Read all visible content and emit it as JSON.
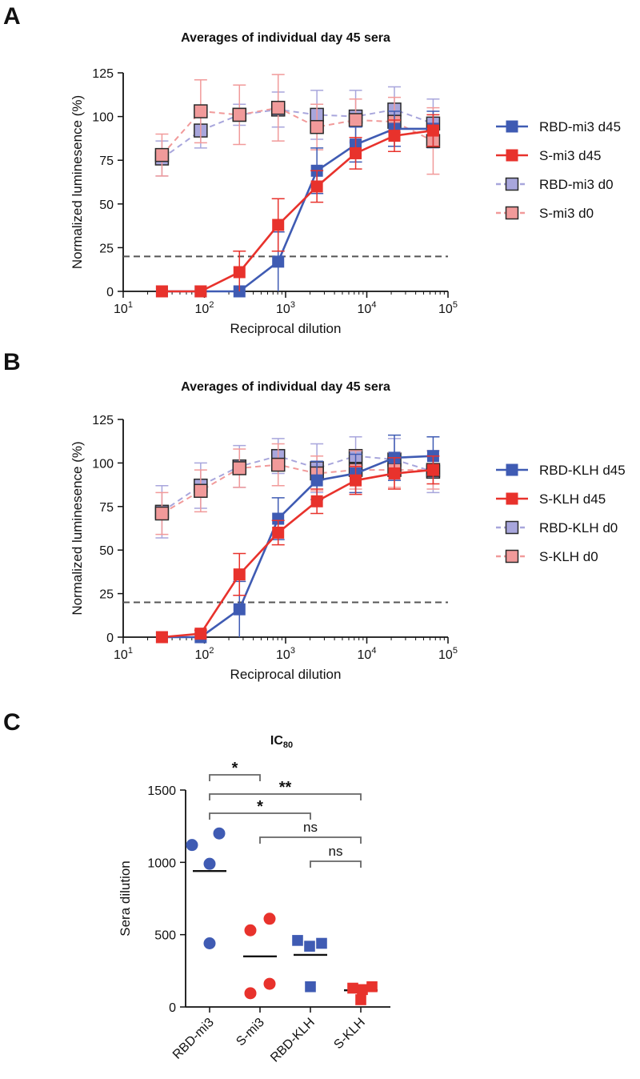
{
  "figure": {
    "panels": [
      {
        "letter": "A",
        "title": "Averages of individual day 45 sera"
      },
      {
        "letter": "B",
        "title": "Averages of individual day 45 sera"
      },
      {
        "letter": "C",
        "title_main": "IC",
        "title_sub": "80"
      }
    ]
  },
  "chart_data": [
    {
      "type": "line",
      "panel": "A",
      "title": "Averages of individual day 45 sera",
      "xlabel": "Reciprocal dilution",
      "ylabel": "Normalized luminesence (%)",
      "xscale": "log",
      "xlim": [
        10,
        100000
      ],
      "ylim": [
        0,
        125
      ],
      "yticks": [
        0,
        25,
        50,
        75,
        100,
        125
      ],
      "xticks": [
        {
          "base": "10",
          "exp": "1"
        },
        {
          "base": "10",
          "exp": "2"
        },
        {
          "base": "10",
          "exp": "3"
        },
        {
          "base": "10",
          "exp": "4"
        },
        {
          "base": "10",
          "exp": "5"
        }
      ],
      "threshold": 20,
      "x": [
        30,
        90,
        270,
        810,
        2430,
        7290,
        21870,
        65610
      ],
      "series": [
        {
          "name": "RBD-mi3 d0",
          "color": "#a8a6dc",
          "dashed": true,
          "values": [
            76,
            92,
            101,
            104,
            101,
            100,
            104,
            96
          ],
          "errors": [
            10,
            10,
            6,
            10,
            14,
            15,
            13,
            14
          ]
        },
        {
          "name": "S-mi3 d0",
          "color": "#f19a9a",
          "dashed": true,
          "values": [
            78,
            103,
            101,
            105,
            94,
            98,
            97,
            86
          ],
          "errors": [
            12,
            18,
            17,
            19,
            13,
            12,
            14,
            19
          ]
        },
        {
          "name": "RBD-mi3 d45",
          "color": "#3f5bb3",
          "dashed": false,
          "values": [
            0,
            0,
            0,
            17,
            69,
            84,
            93,
            93
          ],
          "errors": [
            0,
            0,
            0,
            17,
            13,
            10,
            10,
            10
          ]
        },
        {
          "name": "S-mi3 d45",
          "color": "#e8322c",
          "dashed": false,
          "values": [
            0,
            0,
            11,
            38,
            60,
            79,
            89,
            92
          ],
          "errors": [
            0,
            0,
            12,
            15,
            9,
            9,
            9,
            9
          ]
        }
      ],
      "legend_order": [
        "RBD-mi3 d45",
        "S-mi3 d45",
        "RBD-mi3 d0",
        "S-mi3 d0"
      ],
      "legend_position": "right"
    },
    {
      "type": "line",
      "panel": "B",
      "title": "Averages of individual day 45 sera",
      "xlabel": "Reciprocal dilution",
      "ylabel": "Normalized luminesence (%)",
      "xscale": "log",
      "xlim": [
        10,
        100000
      ],
      "ylim": [
        0,
        125
      ],
      "yticks": [
        0,
        25,
        50,
        75,
        100,
        125
      ],
      "xticks": [
        {
          "base": "10",
          "exp": "1"
        },
        {
          "base": "10",
          "exp": "2"
        },
        {
          "base": "10",
          "exp": "3"
        },
        {
          "base": "10",
          "exp": "4"
        },
        {
          "base": "10",
          "exp": "5"
        }
      ],
      "threshold": 20,
      "x": [
        30,
        90,
        270,
        810,
        2430,
        7290,
        21870,
        65610
      ],
      "series": [
        {
          "name": "RBD-KLH d0",
          "color": "#a8a6dc",
          "dashed": true,
          "values": [
            72,
            87,
            98,
            104,
            97,
            104,
            102,
            95
          ],
          "errors": [
            15,
            13,
            12,
            10,
            14,
            11,
            12,
            12
          ]
        },
        {
          "name": "S-KLH d0",
          "color": "#f19a9a",
          "dashed": true,
          "values": [
            71,
            84,
            97,
            99,
            94,
            96,
            96,
            96
          ],
          "errors": [
            12,
            12,
            11,
            12,
            10,
            11,
            10,
            11
          ]
        },
        {
          "name": "RBD-KLH d45",
          "color": "#3f5bb3",
          "dashed": false,
          "values": [
            0,
            0,
            16,
            68,
            90,
            94,
            103,
            104
          ],
          "errors": [
            0,
            0,
            16,
            12,
            11,
            11,
            13,
            11
          ]
        },
        {
          "name": "S-KLH d45",
          "color": "#e8322c",
          "dashed": false,
          "values": [
            0,
            2,
            36,
            60,
            78,
            90,
            94,
            96
          ],
          "errors": [
            0,
            2,
            12,
            7,
            7,
            8,
            9,
            8
          ]
        }
      ],
      "legend_order": [
        "RBD-KLH d45",
        "S-KLH d45",
        "RBD-KLH d0",
        "S-KLH d0"
      ],
      "legend_position": "right"
    },
    {
      "type": "scatter",
      "panel": "C",
      "title": "IC80",
      "ylabel": "Sera dilution",
      "ylim": [
        0,
        1500
      ],
      "yticks": [
        0,
        500,
        1000,
        1500
      ],
      "categories": [
        "RBD-mi3",
        "S-mi3",
        "RBD-KLH",
        "S-KLH"
      ],
      "groups": [
        {
          "name": "RBD-mi3",
          "color": "#3f5bb3",
          "marker": "circle",
          "values": [
            1120,
            1200,
            990,
            440
          ],
          "mean": 940
        },
        {
          "name": "S-mi3",
          "color": "#e8322c",
          "marker": "circle",
          "values": [
            530,
            610,
            160,
            95
          ],
          "mean": 350
        },
        {
          "name": "RBD-KLH",
          "color": "#3f5bb3",
          "marker": "square",
          "values": [
            460,
            420,
            440,
            140
          ],
          "mean": 360
        },
        {
          "name": "S-KLH",
          "color": "#e8322c",
          "marker": "square",
          "values": [
            130,
            120,
            140,
            50
          ],
          "mean": 115
        }
      ],
      "comparisons": [
        {
          "from": "RBD-mi3",
          "to": "S-mi3",
          "label": "*"
        },
        {
          "from": "RBD-mi3",
          "to": "S-KLH",
          "label": "**"
        },
        {
          "from": "RBD-mi3",
          "to": "RBD-KLH",
          "label": "*"
        },
        {
          "from": "S-mi3",
          "to": "S-KLH",
          "label": "ns"
        },
        {
          "from": "RBD-KLH",
          "to": "S-KLH",
          "label": "ns"
        }
      ]
    }
  ]
}
